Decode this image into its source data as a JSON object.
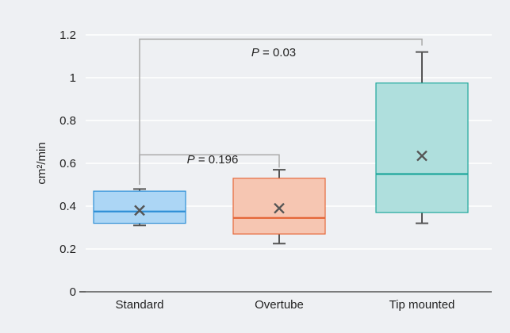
{
  "chart_data": {
    "type": "box",
    "ylabel": "cm²/min",
    "xlabel": "",
    "ylim": [
      0,
      1.2
    ],
    "yticks": [
      {
        "value": 0,
        "label": "0"
      },
      {
        "value": 0.2,
        "label": "0.2"
      },
      {
        "value": 0.4,
        "label": "0.4"
      },
      {
        "value": 0.6,
        "label": "0.6"
      },
      {
        "value": 0.8,
        "label": "0.8"
      },
      {
        "value": 1,
        "label": "1"
      },
      {
        "value": 1.2,
        "label": "1.2"
      }
    ],
    "grid": true,
    "legend": "none",
    "categories": [
      "Standard",
      "Overtube",
      "Tip mounted"
    ],
    "boxes": [
      {
        "name": "Standard",
        "min": 0.31,
        "q1": 0.32,
        "median": 0.375,
        "q3": 0.47,
        "max": 0.48,
        "mean": 0.38,
        "fill": "#acd6f5",
        "stroke": "#2e8fd6"
      },
      {
        "name": "Overtube",
        "min": 0.225,
        "q1": 0.27,
        "median": 0.345,
        "q3": 0.53,
        "max": 0.57,
        "mean": 0.39,
        "fill": "#f6c6b2",
        "stroke": "#e5683a"
      },
      {
        "name": "Tip mounted",
        "min": 0.32,
        "q1": 0.37,
        "median": 0.55,
        "q3": 0.975,
        "max": 1.12,
        "mean": 0.635,
        "fill": "#afdfdd",
        "stroke": "#1fa79c"
      }
    ],
    "comparisons": [
      {
        "from": 0,
        "to": 1,
        "label_italic": "P",
        "label_rest": " = 0.196",
        "y_from": 0.5,
        "y_to": 0.58,
        "y_bar": 0.64
      },
      {
        "from": 0,
        "to": 2,
        "label_italic": "P",
        "label_rest": " = 0.03",
        "y_from": 0.5,
        "y_to": 1.15,
        "y_bar": 1.18
      }
    ],
    "colors": {
      "whisker": "#555555",
      "mean_marker": "#555555",
      "grid": "#ffffff",
      "bracket": "#aaaaaa",
      "axis": "#555555"
    }
  }
}
